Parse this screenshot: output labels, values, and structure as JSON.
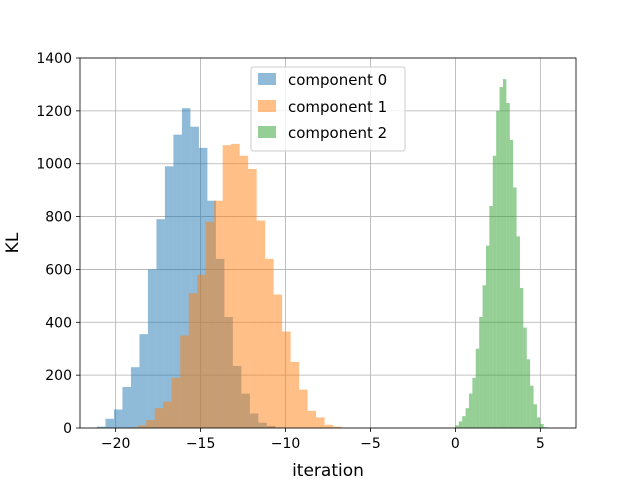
{
  "chart_data": {
    "type": "bar",
    "title": "",
    "xlabel": "iteration",
    "ylabel": "KL",
    "xlim": [
      -22.1,
      7.1
    ],
    "ylim": [
      0,
      1400
    ],
    "xticks": [
      -20,
      -15,
      -10,
      -5,
      0,
      5
    ],
    "xtick_labels": [
      "−20",
      "−15",
      "−10",
      "−5",
      "0",
      "5"
    ],
    "yticks": [
      0,
      200,
      400,
      600,
      800,
      1000,
      1200,
      1400
    ],
    "ytick_labels": [
      "0",
      "200",
      "400",
      "600",
      "800",
      "1000",
      "1200",
      "1400"
    ],
    "grid": true,
    "legend_position": "top-center",
    "series": [
      {
        "name": "component 0",
        "color": "#1f77b4",
        "alpha": 0.5,
        "bin_start": -21.1,
        "bin_width": 0.5,
        "values": [
          5,
          35,
          70,
          155,
          230,
          355,
          600,
          790,
          990,
          1110,
          1210,
          1140,
          1060,
          860,
          640,
          420,
          235,
          130,
          55,
          20,
          8,
          2
        ]
      },
      {
        "name": "component 1",
        "color": "#ff7f0e",
        "alpha": 0.5,
        "bin_start": -19.2,
        "bin_width": 0.5,
        "values": [
          2,
          10,
          30,
          75,
          100,
          190,
          350,
          510,
          580,
          780,
          860,
          1070,
          1075,
          1030,
          980,
          785,
          640,
          505,
          365,
          250,
          145,
          65,
          40,
          12,
          5
        ]
      },
      {
        "name": "component 2",
        "color": "#2ca02c",
        "alpha": 0.5,
        "bin_start": -0.2,
        "bin_width": 0.2,
        "values": [
          2,
          10,
          25,
          45,
          75,
          130,
          190,
          300,
          420,
          540,
          690,
          840,
          1030,
          1200,
          1290,
          1320,
          1230,
          1090,
          910,
          725,
          530,
          380,
          260,
          160,
          90,
          40,
          15,
          3
        ]
      }
    ]
  }
}
